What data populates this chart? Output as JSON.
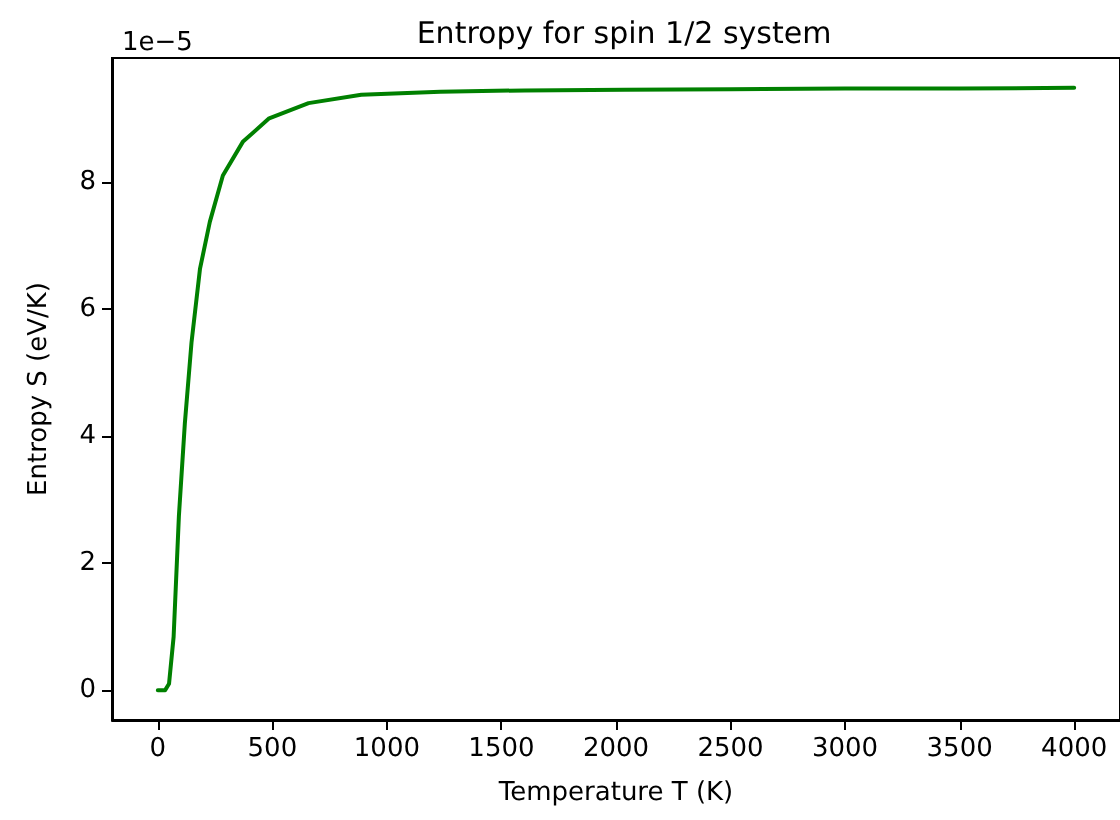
{
  "chart_data": {
    "type": "line",
    "title": "Entropy for spin 1/2 system",
    "xlabel": "Temperature T (K)",
    "ylabel": "Entropy S (eV/K)",
    "annotations": [
      "1e−5"
    ],
    "series": [
      {
        "color": "#008000",
        "x": [
          0,
          32,
          49,
          69,
          92,
          118,
          147,
          184,
          227,
          284,
          371,
          486,
          658,
          888,
          1233,
          1600,
          2037,
          2500,
          3000,
          3500,
          4000
        ],
        "values": [
          0,
          0,
          0.1,
          0.84,
          2.74,
          4.2,
          5.47,
          6.63,
          7.37,
          8.1,
          8.63,
          9.0,
          9.24,
          9.37,
          9.42,
          9.44,
          9.45,
          9.46,
          9.47,
          9.47,
          9.48
        ]
      }
    ],
    "xlim": [
      -200,
      4200
    ],
    "xticks": [
      0,
      500,
      1000,
      1500,
      2000,
      2500,
      3000,
      3500,
      4000
    ],
    "ylim": [
      -0.47,
      9.95
    ],
    "yticks": [
      0,
      2,
      4,
      6,
      8
    ],
    "marker": "none",
    "line_style": "solid"
  }
}
